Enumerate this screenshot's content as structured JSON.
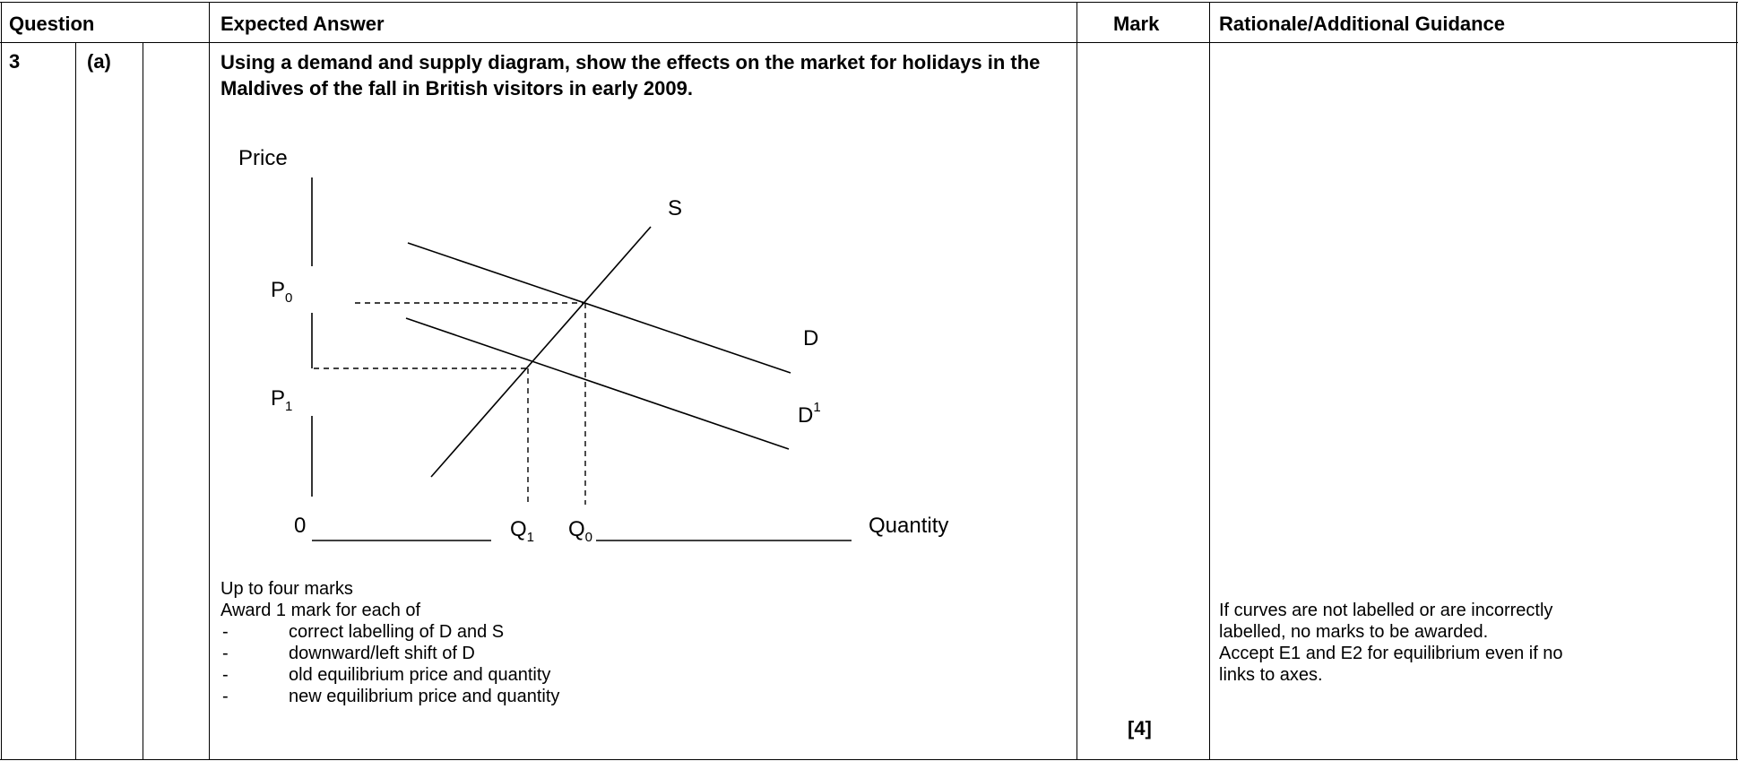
{
  "header": {
    "question": "Question",
    "expected_answer": "Expected Answer",
    "mark": "Mark",
    "rationale": "Rationale/Additional Guidance"
  },
  "row": {
    "number": "3",
    "part": "(a)",
    "subpart": "",
    "question_text": "Using a demand and supply diagram, show the effects on the market for holidays in the Maldives of the fall in British visitors in early 2009.",
    "mark_value": "[4]",
    "guidance_lines": [
      "If curves are not labelled or are incorrectly",
      "labelled, no marks to be awarded.",
      "Accept E1 and E2 for equilibrium even if no",
      "links to axes."
    ]
  },
  "diagram": {
    "y_axis_label": "Price",
    "x_axis_label": "Quantity",
    "origin": "0",
    "supply_label": "S",
    "demand_label": "D",
    "new_demand_label": "D",
    "new_demand_sup": "1",
    "p0": "P",
    "p0_sub": "0",
    "p1": "P",
    "p1_sub": "1",
    "q1": "Q",
    "q1_sub": "1",
    "q0": "Q",
    "q0_sub": "0"
  },
  "marking": {
    "intro1": "Up to four marks",
    "intro2": "Award 1 mark for each of",
    "bullet_char": "-",
    "bullets": [
      "correct labelling of D and S",
      "downward/left shift of D",
      "old equilibrium price and quantity",
      "new equilibrium price and quantity"
    ]
  }
}
